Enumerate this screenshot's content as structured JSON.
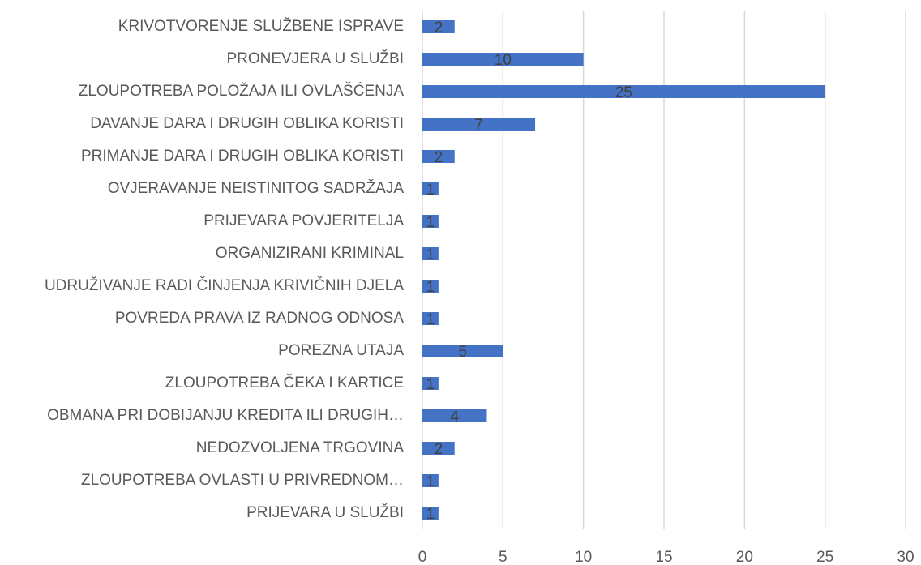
{
  "chart_data": {
    "type": "bar",
    "orientation": "horizontal",
    "categories": [
      "KRIVOTVORENJE SLUŽBENE ISPRAVE",
      "PRONEVJERA U SLUŽBI",
      "ZLOUPOTREBA POLOŽAJA ILI OVLAŠĆENJA",
      "DAVANJE DARA I DRUGIH OBLIKA KORISTI",
      "PRIMANJE DARA I DRUGIH OBLIKA KORISTI",
      "OVJERAVANJE NEISTINITOG SADRŽAJA",
      "PRIJEVARA POVJERITELJA",
      "ORGANIZIRANI KRIMINAL",
      "UDRUŽIVANJE RADI ČINJENJA KRIVIČNIH DJELA",
      "POVREDA PRAVA IZ RADNOG ODNOSA",
      "POREZNA UTAJA",
      "ZLOUPOTREBA ČEKA I KARTICE",
      "OBMANA PRI DOBIJANJU KREDITA ILI DRUGIH…",
      "NEDOZVOLJENA TRGOVINA",
      "ZLOUPOTREBA OVLASTI U PRIVREDNOM…",
      "PRIJEVARA U SLUŽBI"
    ],
    "values": [
      2,
      10,
      25,
      7,
      2,
      1,
      1,
      1,
      1,
      1,
      5,
      1,
      4,
      2,
      1,
      1
    ],
    "color": "#4472c4",
    "xlim": [
      0,
      30
    ],
    "xticks": [
      0,
      5,
      10,
      15,
      20,
      25,
      30
    ],
    "grid": true
  }
}
